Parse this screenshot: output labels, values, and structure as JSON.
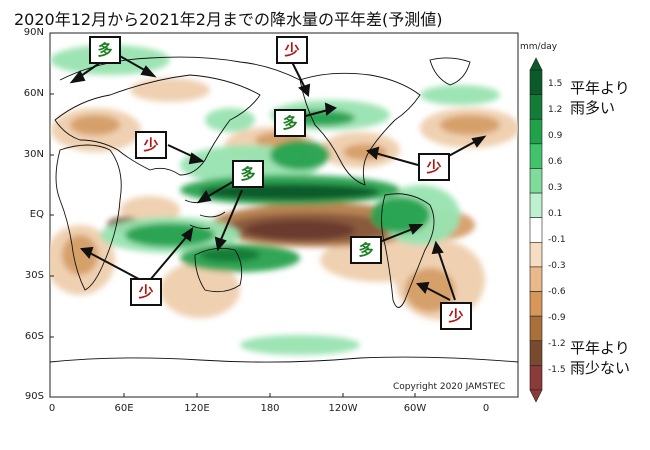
{
  "title": "2020年12月から2021年2月までの降水量の平年差(予測値)",
  "axes": {
    "lat_labels": [
      "90N",
      "60N",
      "30N",
      "EQ",
      "30S",
      "60S",
      "90S"
    ],
    "lon_labels": [
      "0",
      "60E",
      "120E",
      "180",
      "120W",
      "60W",
      "0"
    ]
  },
  "copyright": "Copyright 2020 JAMSTEC",
  "colorbar": {
    "unit": "mm/day",
    "labels": [
      "1.5",
      "1.2",
      "0.9",
      "0.6",
      "0.3",
      "0.1",
      "-0.1",
      "-0.3",
      "-0.6",
      "-0.9",
      "-1.2",
      "-1.5"
    ],
    "colors": [
      "#0a5a2a",
      "#137d38",
      "#1fa24a",
      "#3fc36b",
      "#7fdc9a",
      "#bff0cf",
      "#ffffff",
      "#f6dcc0",
      "#e9b98b",
      "#d69758",
      "#a9703c",
      "#7a4a2e",
      "#8b3a3a"
    ],
    "wet_label": "平年より雨多い",
    "dry_label": "平年より雨少ない"
  },
  "annotations": {
    "wet_symbol": "多",
    "dry_symbol": "少"
  },
  "palette": {
    "wet_strong": "#0b5a2c",
    "wet_medium": "#26a24f",
    "wet_light": "#98e3b0",
    "dry_strong": "#6b3a2e",
    "dry_medium": "#b98452",
    "dry_light": "#efcfae",
    "wet_text": "#1a7f1f",
    "dry_text": "#b01818"
  }
}
